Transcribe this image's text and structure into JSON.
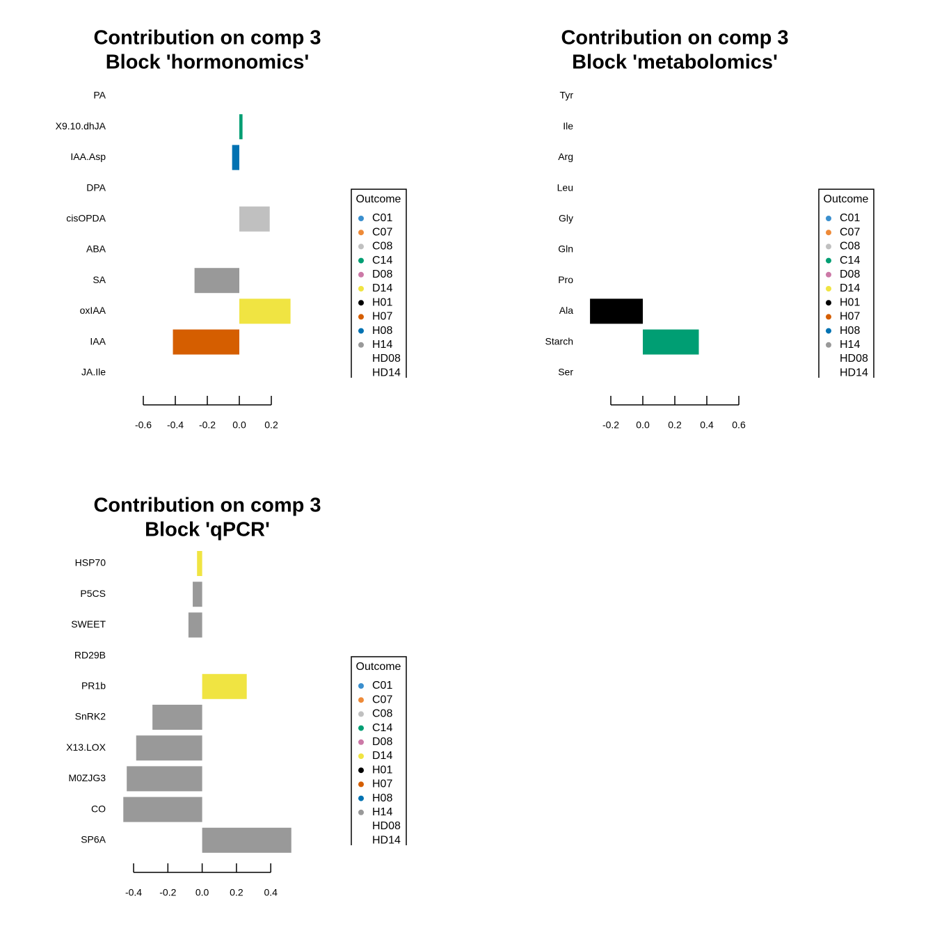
{
  "chart_data": [
    {
      "type": "bar",
      "orientation": "horizontal",
      "title": [
        "Contribution on comp 3",
        "Block 'hormonomics'"
      ],
      "categories": [
        "PA",
        "X9.10.dhJA",
        "IAA.Asp",
        "DPA",
        "cisOPDA",
        "ABA",
        "SA",
        "oxIAA",
        "IAA",
        "JA.Ile"
      ],
      "values": [
        0,
        0.02,
        -0.045,
        0,
        0.19,
        0,
        -0.28,
        0.32,
        -0.415,
        0
      ],
      "colors": [
        null,
        "#009E73",
        "#0072B2",
        null,
        "#C0C0C0",
        null,
        "#999999",
        "#F0E442",
        "#D55E00",
        null
      ],
      "xlim": [
        -0.8,
        0.55
      ],
      "xticks": [
        -0.6,
        -0.4,
        -0.2,
        {
          "value": 0,
          "label": "0.0"
        },
        0.2
      ],
      "legend": {
        "title": "Outcome",
        "items": [
          "C01",
          "C07",
          "C08",
          "C14",
          "D08",
          "D14",
          "H01",
          "H07",
          "H08",
          "H14",
          "HD08",
          "HD14"
        ],
        "colors": [
          "#3A8FCE",
          "#EE8A38",
          "#C0C0C0",
          "#009E73",
          "#CC79A7",
          "#F0E442",
          "#000000",
          "#D55E00",
          "#0072B2",
          "#999999",
          null,
          null
        ]
      }
    },
    {
      "type": "bar",
      "orientation": "horizontal",
      "title": [
        "Contribution on comp 3",
        "Block 'metabolomics'"
      ],
      "categories": [
        "Tyr",
        "Ile",
        "Arg",
        "Leu",
        "Gly",
        "Gln",
        "Pro",
        "Ala",
        "Starch",
        "Ser"
      ],
      "values": [
        0,
        0,
        0,
        0,
        0,
        0,
        0,
        -0.33,
        0.35,
        0
      ],
      "colors": [
        null,
        null,
        null,
        null,
        null,
        null,
        null,
        "#000000",
        "#009E73",
        null
      ],
      "xlim": [
        -0.4,
        0.95
      ],
      "xticks": [
        -0.2,
        {
          "value": 0,
          "label": "0.0"
        },
        0.2,
        0.4,
        0.6
      ],
      "legend": {
        "title": "Outcome",
        "items": [
          "C01",
          "C07",
          "C08",
          "C14",
          "D08",
          "D14",
          "H01",
          "H07",
          "H08",
          "H14",
          "HD08",
          "HD14"
        ],
        "colors": [
          "#3A8FCE",
          "#EE8A38",
          "#C0C0C0",
          "#009E73",
          "#CC79A7",
          "#F0E442",
          "#000000",
          "#D55E00",
          "#0072B2",
          "#999999",
          null,
          null
        ]
      }
    },
    {
      "type": "bar",
      "orientation": "horizontal",
      "title": [
        "Contribution on comp 3",
        "Block 'qPCR'"
      ],
      "categories": [
        "HSP70",
        "P5CS",
        "SWEET",
        "RD29B",
        "PR1b",
        "SnRK2",
        "X13.LOX",
        "M0ZJG3",
        "CO",
        "SP6A"
      ],
      "values": [
        -0.03,
        -0.055,
        -0.08,
        0,
        0.26,
        -0.29,
        -0.385,
        -0.44,
        -0.46,
        0.52
      ],
      "colors": [
        "#F0E442",
        "#999999",
        "#999999",
        null,
        "#F0E442",
        "#999999",
        "#999999",
        "#999999",
        "#999999",
        "#999999"
      ],
      "xlim": [
        -0.53,
        0.73
      ],
      "xticks": [
        -0.4,
        -0.2,
        {
          "value": 0,
          "label": "0.0"
        },
        0.2,
        0.4
      ],
      "legend": {
        "title": "Outcome",
        "items": [
          "C01",
          "C07",
          "C08",
          "C14",
          "D08",
          "D14",
          "H01",
          "H07",
          "H08",
          "H14",
          "HD08",
          "HD14"
        ],
        "colors": [
          "#3A8FCE",
          "#EE8A38",
          "#C0C0C0",
          "#009E73",
          "#CC79A7",
          "#F0E442",
          "#000000",
          "#D55E00",
          "#0072B2",
          "#999999",
          null,
          null
        ]
      }
    }
  ]
}
